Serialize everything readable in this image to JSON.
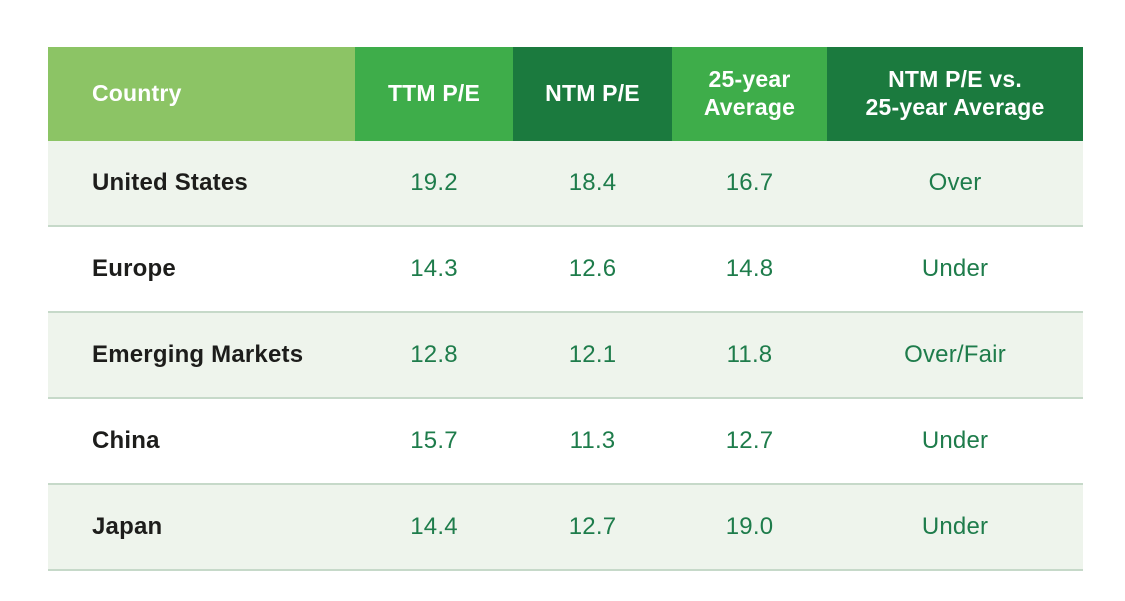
{
  "table": {
    "columns": [
      {
        "key": "country",
        "label": "Country",
        "header_bg": "#8cc465",
        "align": "left"
      },
      {
        "key": "ttm_pe",
        "label": "TTM P/E",
        "header_bg": "#3ead4a",
        "align": "center"
      },
      {
        "key": "ntm_pe",
        "label": "NTM P/E",
        "header_bg": "#1b7a3e",
        "align": "center"
      },
      {
        "key": "avg_25y",
        "label": "25-year\nAverage",
        "header_bg": "#3ead4a",
        "align": "center"
      },
      {
        "key": "ntm_vs_avg",
        "label": "NTM P/E vs.\n25-year Average",
        "header_bg": "#1b7a3e",
        "align": "center"
      }
    ],
    "rows": [
      {
        "country": "United States",
        "ttm_pe": "19.2",
        "ntm_pe": "18.4",
        "avg_25y": "16.7",
        "ntm_vs_avg": "Over"
      },
      {
        "country": "Europe",
        "ttm_pe": "14.3",
        "ntm_pe": "12.6",
        "avg_25y": "14.8",
        "ntm_vs_avg": "Under"
      },
      {
        "country": "Emerging Markets",
        "ttm_pe": "12.8",
        "ntm_pe": "12.1",
        "avg_25y": "11.8",
        "ntm_vs_avg": "Over/Fair"
      },
      {
        "country": "China",
        "ttm_pe": "15.7",
        "ntm_pe": "11.3",
        "avg_25y": "12.7",
        "ntm_vs_avg": "Under"
      },
      {
        "country": "Japan",
        "ttm_pe": "14.4",
        "ntm_pe": "12.7",
        "avg_25y": "19.0",
        "ntm_vs_avg": "Under"
      }
    ],
    "colors": {
      "header_light_green": "#8cc465",
      "header_medium_green": "#3ead4a",
      "header_dark_green": "#1b7a3e",
      "header_text": "#ffffff",
      "value_green": "#1e7c4b",
      "country_text": "#1d1d1b",
      "row_stripe_mint": "#eef4ec",
      "row_white": "#ffffff",
      "row_divider": "#c6d9c9",
      "page_background": "#ffffff"
    }
  },
  "chart_data": {
    "type": "table",
    "columns": [
      "Country",
      "TTM P/E",
      "NTM P/E",
      "25-year Average",
      "NTM P/E vs. 25-year Average"
    ],
    "rows": [
      [
        "United States",
        19.2,
        18.4,
        16.7,
        "Over"
      ],
      [
        "Europe",
        14.3,
        12.6,
        14.8,
        "Under"
      ],
      [
        "Emerging Markets",
        12.8,
        12.1,
        11.8,
        "Over/Fair"
      ],
      [
        "China",
        15.7,
        11.3,
        12.7,
        "Under"
      ],
      [
        "Japan",
        14.4,
        12.7,
        19.0,
        "Under"
      ]
    ],
    "title": "",
    "notes": "Equity valuations table: trailing-twelve-month P/E, next-twelve-month P/E, 25-year average P/E, and NTM P/E relative to the 25-year average, by region."
  }
}
